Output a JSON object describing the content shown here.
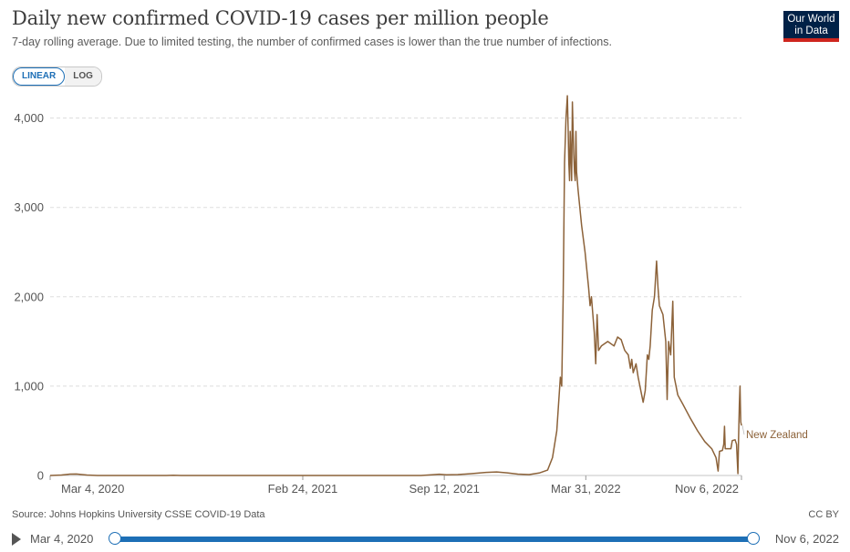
{
  "header": {
    "title": "Daily new confirmed COVID-19 cases per million people",
    "subtitle": "7-day rolling average. Due to limited testing, the number of confirmed cases is lower than the true number of infections.",
    "logo_line1": "Our World",
    "logo_line2": "in Data"
  },
  "scale_toggle": {
    "linear_label": "LINEAR",
    "log_label": "LOG",
    "selected": "linear"
  },
  "footer": {
    "source": "Source: Johns Hopkins University CSSE COVID-19 Data",
    "license": "CC BY"
  },
  "timeline": {
    "start_label": "Mar 4, 2020",
    "end_label": "Nov 6, 2022"
  },
  "colors": {
    "series": "#8c6239",
    "accent": "#1d6fb6",
    "logo_bg": "#002147",
    "logo_stripe": "#ce261e"
  },
  "chart_data": {
    "type": "line",
    "x_type": "date",
    "xlim": [
      "2020-03-04",
      "2022-11-06"
    ],
    "ylim": [
      0,
      4200
    ],
    "y_ticks": [
      0,
      1000,
      2000,
      3000,
      4000
    ],
    "y_tick_labels": [
      "0",
      "1,000",
      "2,000",
      "3,000",
      "4,000"
    ],
    "x_ticks": [
      "2020-03-04",
      "2021-02-24",
      "2021-09-12",
      "2022-03-31",
      "2022-11-06"
    ],
    "x_tick_labels": [
      "Mar 4, 2020",
      "Feb 24, 2021",
      "Sep 12, 2021",
      "Mar 31, 2022",
      "Nov 6, 2022"
    ],
    "grid": "horizontal dashed",
    "legend": "inline label at line end",
    "series": [
      {
        "name": "New Zealand",
        "color": "#8c6239",
        "points": [
          [
            "2020-03-04",
            0
          ],
          [
            "2020-03-20",
            5
          ],
          [
            "2020-04-01",
            15
          ],
          [
            "2020-04-10",
            16
          ],
          [
            "2020-04-25",
            5
          ],
          [
            "2020-05-10",
            0
          ],
          [
            "2020-08-15",
            0
          ],
          [
            "2020-08-25",
            2
          ],
          [
            "2020-09-05",
            0
          ],
          [
            "2021-08-10",
            0
          ],
          [
            "2021-08-25",
            8
          ],
          [
            "2021-09-05",
            14
          ],
          [
            "2021-09-15",
            8
          ],
          [
            "2021-10-01",
            10
          ],
          [
            "2021-10-20",
            20
          ],
          [
            "2021-11-10",
            35
          ],
          [
            "2021-11-25",
            40
          ],
          [
            "2021-12-10",
            30
          ],
          [
            "2021-12-25",
            15
          ],
          [
            "2022-01-10",
            10
          ],
          [
            "2022-01-25",
            30
          ],
          [
            "2022-02-05",
            60
          ],
          [
            "2022-02-12",
            200
          ],
          [
            "2022-02-18",
            500
          ],
          [
            "2022-02-23",
            1100
          ],
          [
            "2022-02-25",
            1000
          ],
          [
            "2022-02-27",
            2000
          ],
          [
            "2022-03-01",
            3500
          ],
          [
            "2022-03-03",
            4000
          ],
          [
            "2022-03-05",
            4250
          ],
          [
            "2022-03-06",
            3900
          ],
          [
            "2022-03-07",
            3500
          ],
          [
            "2022-03-08",
            3300
          ],
          [
            "2022-03-09",
            3850
          ],
          [
            "2022-03-10",
            3600
          ],
          [
            "2022-03-11",
            3300
          ],
          [
            "2022-03-12",
            4180
          ],
          [
            "2022-03-13",
            3900
          ],
          [
            "2022-03-14",
            3600
          ],
          [
            "2022-03-15",
            3400
          ],
          [
            "2022-03-16",
            3300
          ],
          [
            "2022-03-17",
            3850
          ],
          [
            "2022-03-18",
            3400
          ],
          [
            "2022-03-20",
            3200
          ],
          [
            "2022-03-25",
            2800
          ],
          [
            "2022-03-30",
            2500
          ],
          [
            "2022-04-04",
            2100
          ],
          [
            "2022-04-06",
            1900
          ],
          [
            "2022-04-08",
            2000
          ],
          [
            "2022-04-12",
            1600
          ],
          [
            "2022-04-14",
            1250
          ],
          [
            "2022-04-16",
            1800
          ],
          [
            "2022-04-18",
            1400
          ],
          [
            "2022-04-22",
            1450
          ],
          [
            "2022-05-01",
            1500
          ],
          [
            "2022-05-10",
            1450
          ],
          [
            "2022-05-15",
            1550
          ],
          [
            "2022-05-20",
            1520
          ],
          [
            "2022-05-25",
            1400
          ],
          [
            "2022-05-30",
            1350
          ],
          [
            "2022-06-02",
            1200
          ],
          [
            "2022-06-04",
            1300
          ],
          [
            "2022-06-06",
            1150
          ],
          [
            "2022-06-10",
            1250
          ],
          [
            "2022-06-13",
            1100
          ],
          [
            "2022-06-18",
            900
          ],
          [
            "2022-06-20",
            820
          ],
          [
            "2022-06-23",
            950
          ],
          [
            "2022-06-26",
            1350
          ],
          [
            "2022-06-28",
            1300
          ],
          [
            "2022-06-30",
            1450
          ],
          [
            "2022-07-03",
            1850
          ],
          [
            "2022-07-06",
            2000
          ],
          [
            "2022-07-09",
            2400
          ],
          [
            "2022-07-11",
            2100
          ],
          [
            "2022-07-13",
            1900
          ],
          [
            "2022-07-18",
            1800
          ],
          [
            "2022-07-22",
            1500
          ],
          [
            "2022-07-24",
            850
          ],
          [
            "2022-07-26",
            1500
          ],
          [
            "2022-07-29",
            1350
          ],
          [
            "2022-08-01",
            1950
          ],
          [
            "2022-08-03",
            1100
          ],
          [
            "2022-08-08",
            900
          ],
          [
            "2022-08-15",
            800
          ],
          [
            "2022-08-25",
            650
          ],
          [
            "2022-09-05",
            500
          ],
          [
            "2022-09-15",
            380
          ],
          [
            "2022-09-25",
            300
          ],
          [
            "2022-10-01",
            200
          ],
          [
            "2022-10-04",
            50
          ],
          [
            "2022-10-06",
            270
          ],
          [
            "2022-10-10",
            280
          ],
          [
            "2022-10-12",
            350
          ],
          [
            "2022-10-13",
            550
          ],
          [
            "2022-10-14",
            300
          ],
          [
            "2022-10-22",
            300
          ],
          [
            "2022-10-24",
            390
          ],
          [
            "2022-10-28",
            400
          ],
          [
            "2022-10-30",
            350
          ],
          [
            "2022-11-01",
            20
          ],
          [
            "2022-11-02",
            450
          ],
          [
            "2022-11-03",
            800
          ],
          [
            "2022-11-04",
            1000
          ],
          [
            "2022-11-05",
            600
          ],
          [
            "2022-11-06",
            560
          ]
        ]
      }
    ]
  }
}
